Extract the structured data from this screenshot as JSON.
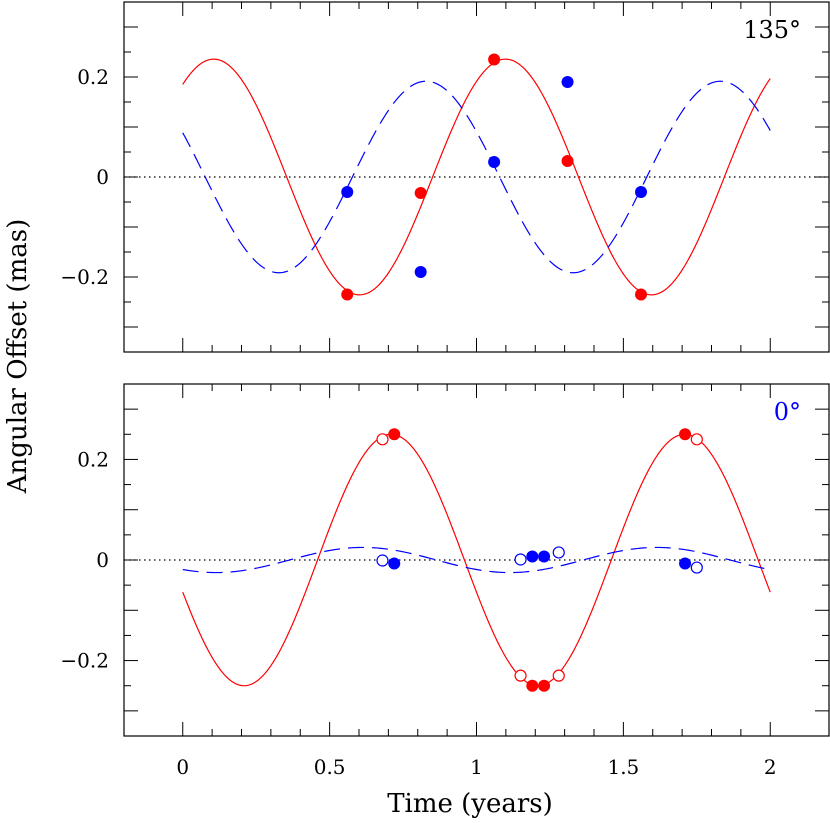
{
  "xlabel": "Time (years)",
  "ylabel": "Angular Offset (mas)",
  "colors": {
    "red": "#ff0000",
    "blue": "#0000ff",
    "axes": "#000000"
  },
  "chart_data": [
    {
      "type": "line",
      "panel_label": "135°",
      "panel_label_color": "#000000",
      "xlim": [
        -0.2,
        2.2
      ],
      "ylim": [
        -0.35,
        0.35
      ],
      "xticks": [
        0,
        0.5,
        1,
        1.5,
        2
      ],
      "yticks": [
        -0.2,
        0,
        0.2
      ],
      "ytick_labels": [
        "−0.2",
        "0",
        "0.2"
      ],
      "zero_line": "dotted",
      "series": [
        {
          "style": "solid",
          "color": "#ff0000",
          "curve": {
            "amplitude": 0.2357,
            "period": 0.9933,
            "phase": 0.9034,
            "x_range": [
              0,
              2
            ]
          },
          "points_filled": [
            [
              0.56,
              -0.235
            ],
            [
              0.81,
              -0.032
            ],
            [
              1.06,
              0.235
            ],
            [
              1.31,
              0.032
            ],
            [
              1.56,
              -0.235
            ]
          ],
          "points_open": []
        },
        {
          "style": "dashed",
          "color": "#0000ff",
          "curve": {
            "amplitude": 0.1915,
            "period": 1.0021,
            "phase": 2.6618,
            "x_range": [
              0,
              2
            ]
          },
          "points_filled": [
            [
              0.56,
              -0.03
            ],
            [
              0.81,
              -0.19
            ],
            [
              1.06,
              0.03
            ],
            [
              1.31,
              0.19
            ],
            [
              1.56,
              -0.03
            ]
          ],
          "points_open": []
        }
      ]
    },
    {
      "type": "line",
      "panel_label": "0°",
      "panel_label_color": "#0000ff",
      "xlim": [
        -0.2,
        2.2
      ],
      "ylim": [
        -0.35,
        0.35
      ],
      "xticks": [
        0,
        0.5,
        1,
        1.5,
        2
      ],
      "xtick_labels": [
        "0",
        "0.5",
        "1",
        "1.5",
        "2"
      ],
      "yticks": [
        -0.2,
        0,
        0.2
      ],
      "ytick_labels": [
        "−0.2",
        "0",
        "0.2"
      ],
      "zero_line": "dotted",
      "series": [
        {
          "style": "solid",
          "color": "#ff0000",
          "curve": {
            "amplitude": 0.25,
            "period": 1.0,
            "phase": 3.4,
            "x_range": [
              0,
              2
            ]
          },
          "points_filled": [
            [
              0.72,
              0.25
            ],
            [
              1.19,
              -0.25
            ],
            [
              1.23,
              -0.25
            ],
            [
              1.71,
              0.25
            ]
          ],
          "points_open": [
            [
              0.68,
              0.24
            ],
            [
              1.15,
              -0.23
            ],
            [
              1.28,
              -0.23
            ],
            [
              1.75,
              0.24
            ]
          ]
        },
        {
          "style": "dashed",
          "color": "#0000ff",
          "curve": {
            "amplitude": 0.025,
            "period": 1.0,
            "phase": 4.0,
            "x_range": [
              0,
              2
            ]
          },
          "points_filled": [
            [
              0.72,
              -0.007
            ],
            [
              1.19,
              0.007
            ],
            [
              1.23,
              0.007
            ],
            [
              1.71,
              -0.007
            ]
          ],
          "points_open": [
            [
              0.68,
              -0.001
            ],
            [
              1.15,
              0.001
            ],
            [
              1.28,
              0.015
            ],
            [
              1.75,
              -0.015
            ]
          ]
        }
      ]
    }
  ]
}
